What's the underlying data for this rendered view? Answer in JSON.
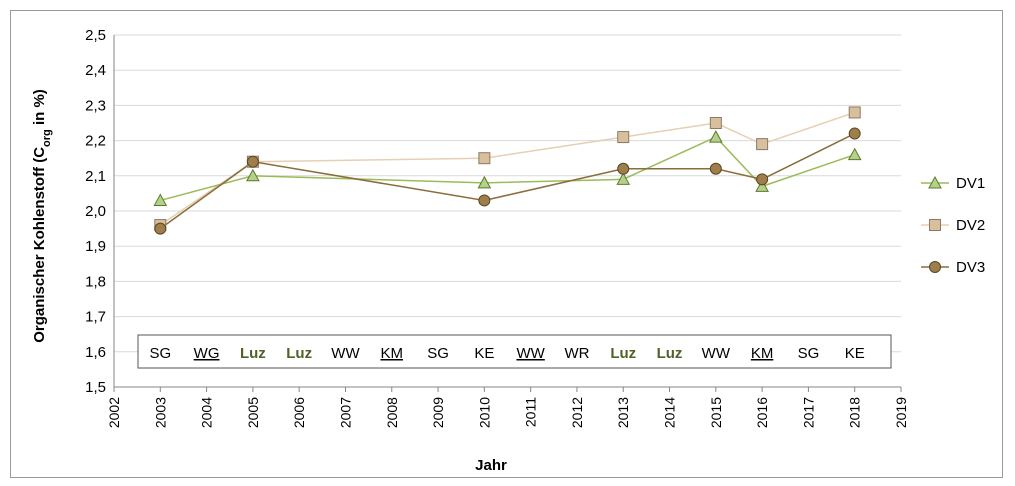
{
  "chart_data": {
    "type": "line",
    "xlabel": "Jahr",
    "ylabel_parts": [
      "Organischer Kohlenstoff  (C",
      "org",
      " in %)"
    ],
    "ylim": [
      1.5,
      2.5
    ],
    "ystep": 0.1,
    "xlim": [
      2002,
      2019
    ],
    "xticks": [
      "2002",
      "2003",
      "2004",
      "2005",
      "2006",
      "2007",
      "2008",
      "2009",
      "2010",
      "2011",
      "2012",
      "2013",
      "2014",
      "2015",
      "2016",
      "2017",
      "2018",
      "2019"
    ],
    "yticks": [
      "1,5",
      "1,6",
      "1,7",
      "1,8",
      "1,9",
      "2,0",
      "2,1",
      "2,2",
      "2,3",
      "2,4",
      "2,5"
    ],
    "grid": true,
    "legend_position": "right",
    "series": [
      {
        "name": "DV1",
        "marker": "triangle",
        "color": "#9bbb59",
        "fill": "#b5d08a",
        "x": [
          2003,
          2005,
          2010,
          2013,
          2015,
          2016,
          2018
        ],
        "y": [
          2.03,
          2.1,
          2.08,
          2.09,
          2.21,
          2.07,
          2.16
        ]
      },
      {
        "name": "DV2",
        "marker": "square",
        "color": "#e6cfb3",
        "fill": "#d8bf9e",
        "x": [
          2003,
          2005,
          2010,
          2013,
          2015,
          2016,
          2018
        ],
        "y": [
          1.96,
          2.14,
          2.15,
          2.21,
          2.25,
          2.19,
          2.28
        ]
      },
      {
        "name": "DV3",
        "marker": "circle",
        "color": "#8a6d3b",
        "fill": "#9e7e4a",
        "x": [
          2003,
          2005,
          2010,
          2013,
          2015,
          2016,
          2018
        ],
        "y": [
          1.95,
          2.14,
          2.03,
          2.12,
          2.12,
          2.09,
          2.22
        ]
      }
    ],
    "crop_rotation": [
      {
        "year": 2003,
        "label": "SG",
        "style": "plain"
      },
      {
        "year": 2004,
        "label": "WG",
        "style": "underline"
      },
      {
        "year": 2005,
        "label": "Luz",
        "style": "green"
      },
      {
        "year": 2006,
        "label": "Luz",
        "style": "green"
      },
      {
        "year": 2007,
        "label": "WW",
        "style": "plain"
      },
      {
        "year": 2008,
        "label": "KM",
        "style": "underline"
      },
      {
        "year": 2009,
        "label": "SG",
        "style": "plain"
      },
      {
        "year": 2010,
        "label": "KE",
        "style": "plain"
      },
      {
        "year": 2011,
        "label": "WW",
        "style": "underline"
      },
      {
        "year": 2012,
        "label": "WR",
        "style": "plain"
      },
      {
        "year": 2013,
        "label": "Luz",
        "style": "green"
      },
      {
        "year": 2014,
        "label": "Luz",
        "style": "green"
      },
      {
        "year": 2015,
        "label": "WW",
        "style": "plain"
      },
      {
        "year": 2016,
        "label": "KM",
        "style": "underline"
      },
      {
        "year": 2017,
        "label": "SG",
        "style": "plain"
      },
      {
        "year": 2018,
        "label": "KE",
        "style": "plain"
      }
    ]
  }
}
